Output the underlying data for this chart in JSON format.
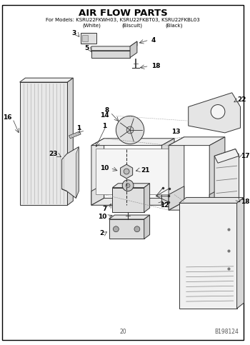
{
  "title": "AIR FLOW PARTS",
  "subtitle_line1": "For Models: KSRU22FKWH03, KSRU22FKBT03, KSRU22FKBL03",
  "subtitle_line2_col1": "(White)",
  "subtitle_line2_col2": "(Biscuit)",
  "subtitle_line2_col3": "(Black)",
  "page_number": "20",
  "doc_number": "B198124",
  "bg_color": "#ffffff",
  "border_color": "#000000",
  "lc": "#333333",
  "title_fontsize": 9.5,
  "subtitle_fontsize": 5.0,
  "label_fontsize": 6.5,
  "footer_fontsize": 5.5
}
